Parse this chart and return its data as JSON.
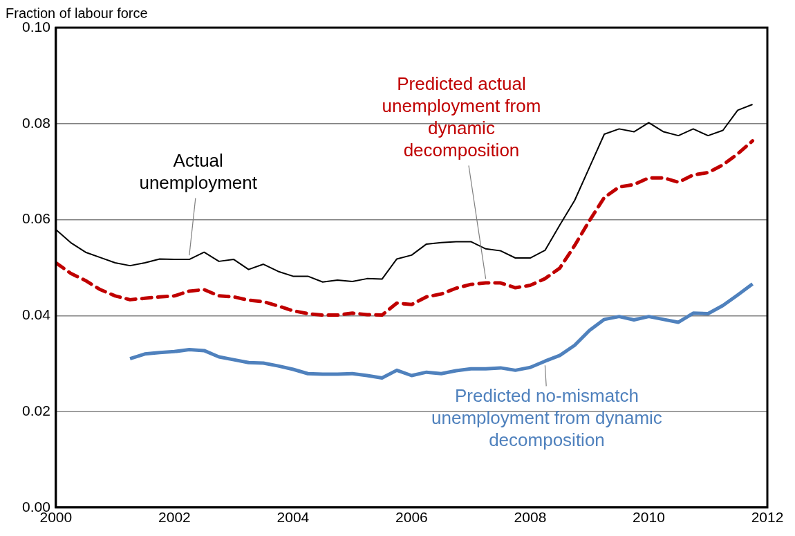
{
  "chart_data": {
    "type": "line",
    "ylabel": "Fraction of labour force",
    "x": [
      2000,
      2000.25,
      2000.5,
      2000.75,
      2001,
      2001.25,
      2001.5,
      2001.75,
      2002,
      2002.25,
      2002.5,
      2002.75,
      2003,
      2003.25,
      2003.5,
      2003.75,
      2004,
      2004.25,
      2004.5,
      2004.75,
      2005,
      2005.25,
      2005.5,
      2005.75,
      2006,
      2006.25,
      2006.5,
      2006.75,
      2007,
      2007.25,
      2007.5,
      2007.75,
      2008,
      2008.25,
      2008.5,
      2008.75,
      2009,
      2009.25,
      2009.5,
      2009.75,
      2010,
      2010.25,
      2010.5,
      2010.75,
      2011,
      2011.25,
      2011.5,
      2011.75
    ],
    "series": [
      {
        "name": "Actual unemployment",
        "color": "#000000",
        "line_style": "solid",
        "values": [
          0.0579,
          0.0552,
          0.0532,
          0.0521,
          0.051,
          0.0504,
          0.051,
          0.0518,
          0.0517,
          0.0517,
          0.0532,
          0.0513,
          0.0517,
          0.0496,
          0.0507,
          0.0492,
          0.0482,
          0.0482,
          0.047,
          0.0474,
          0.0471,
          0.0477,
          0.0476,
          0.0518,
          0.0526,
          0.0549,
          0.0552,
          0.0554,
          0.0554,
          0.0539,
          0.0535,
          0.052,
          0.052,
          0.0536,
          0.0589,
          0.064,
          0.0709,
          0.0778,
          0.0789,
          0.0783,
          0.0802,
          0.0783,
          0.0775,
          0.0789,
          0.0775,
          0.0786,
          0.0828,
          0.084
        ]
      },
      {
        "name": "Predicted actual unemployment from dynamic decomposition",
        "color": "#c00000",
        "line_style": "dashed",
        "values": [
          0.051,
          0.0488,
          0.0473,
          0.0454,
          0.0441,
          0.0433,
          0.0436,
          0.0439,
          0.0441,
          0.0451,
          0.0454,
          0.0441,
          0.0439,
          0.0432,
          0.0429,
          0.042,
          0.041,
          0.0404,
          0.0401,
          0.0401,
          0.0405,
          0.0402,
          0.0401,
          0.0426,
          0.0423,
          0.0439,
          0.0445,
          0.0457,
          0.0465,
          0.0468,
          0.0468,
          0.0458,
          0.0463,
          0.0477,
          0.0499,
          0.0546,
          0.0598,
          0.0646,
          0.0668,
          0.0673,
          0.0687,
          0.0687,
          0.0678,
          0.0693,
          0.0698,
          0.0714,
          0.0737,
          0.0764
        ]
      },
      {
        "name": "Predicted no-mismatch unemployment from dynamic decomposition",
        "color": "#4f81bd",
        "line_style": "solid",
        "values": [
          null,
          null,
          null,
          null,
          null,
          0.031,
          0.032,
          0.0323,
          0.0325,
          0.0329,
          0.0327,
          0.0314,
          0.0308,
          0.0302,
          0.0301,
          0.0295,
          0.0288,
          0.0279,
          0.0278,
          0.0278,
          0.0279,
          0.0275,
          0.027,
          0.0286,
          0.0275,
          0.0282,
          0.0279,
          0.0285,
          0.0289,
          0.0289,
          0.0291,
          0.0286,
          0.0292,
          0.0305,
          0.0317,
          0.0338,
          0.0369,
          0.0392,
          0.0398,
          0.0391,
          0.0398,
          0.0392,
          0.0386,
          0.0405,
          0.0404,
          0.0421,
          0.0443,
          0.0466
        ]
      }
    ],
    "xlim": [
      2000,
      2012
    ],
    "xticks": [
      2000,
      2002,
      2004,
      2006,
      2008,
      2010,
      2012
    ],
    "ylim": [
      0,
      0.1
    ],
    "yticks": [
      {
        "value": 0,
        "label": "0.00"
      },
      {
        "value": 0.02,
        "label": "0.02"
      },
      {
        "value": 0.04,
        "label": "0.04"
      },
      {
        "value": 0.06,
        "label": "0.06"
      },
      {
        "value": 0.08,
        "label": "0.08"
      },
      {
        "value": 0.1,
        "label": "0.10"
      }
    ],
    "grid": "y",
    "legend": false,
    "marker": "none"
  }
}
